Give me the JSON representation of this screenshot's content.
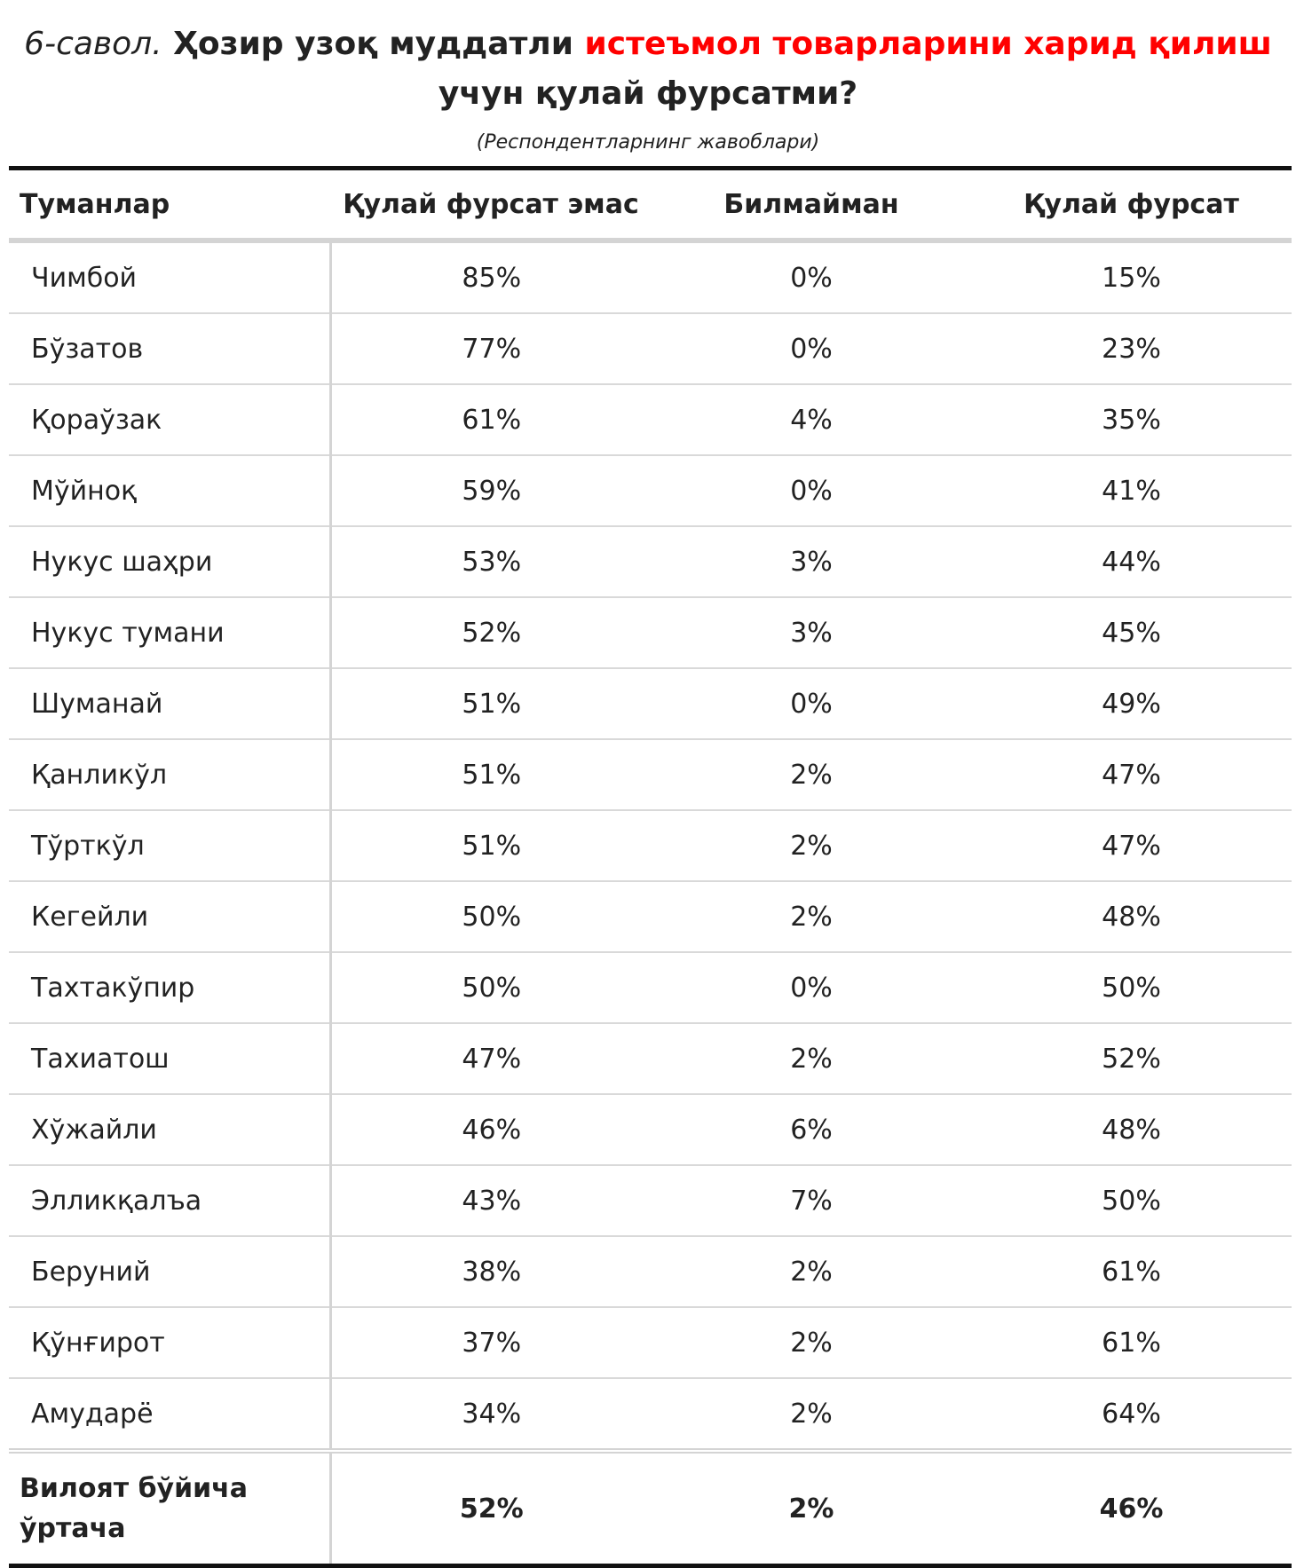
{
  "header": {
    "lead": "6-савол.",
    "part1": "Ҳозир узоқ муддатли",
    "highlight": "истеъмол товарларини харид қилиш",
    "part2": "учун қулай фурсатми?",
    "subtitle": "(Респондентларнинг жавоблари)"
  },
  "colors": {
    "highlight": "#ff0000",
    "text": "#222222",
    "rule": "#111111",
    "grid": "#d4d4d4"
  },
  "table": {
    "columns": [
      "Туманлар",
      "Қулай фурсат эмас",
      "Билмайман",
      "Қулай фурсат"
    ],
    "rows": [
      [
        "Чимбой",
        "85%",
        "0%",
        "15%"
      ],
      [
        "Бўзатов",
        "77%",
        "0%",
        "23%"
      ],
      [
        "Қораўзак",
        "61%",
        "4%",
        "35%"
      ],
      [
        "Мўйноқ",
        "59%",
        "0%",
        "41%"
      ],
      [
        "Нукус шаҳри",
        "53%",
        "3%",
        "44%"
      ],
      [
        "Нукус тумани",
        "52%",
        "3%",
        "45%"
      ],
      [
        "Шуманай",
        "51%",
        "0%",
        "49%"
      ],
      [
        "Қанликўл",
        "51%",
        "2%",
        "47%"
      ],
      [
        "Тўрткўл",
        "51%",
        "2%",
        "47%"
      ],
      [
        "Кегейли",
        "50%",
        "2%",
        "48%"
      ],
      [
        "Тахтакўпир",
        "50%",
        "0%",
        "50%"
      ],
      [
        "Тахиатош",
        "47%",
        "2%",
        "52%"
      ],
      [
        "Хўжайли",
        "46%",
        "6%",
        "48%"
      ],
      [
        "Элликқалъа",
        "43%",
        "7%",
        "50%"
      ],
      [
        "Беруний",
        "38%",
        "2%",
        "61%"
      ],
      [
        "Қўнғирот",
        "37%",
        "2%",
        "61%"
      ],
      [
        "Амударё",
        "34%",
        "2%",
        "64%"
      ]
    ],
    "footer": [
      "Вилоят бўйича ўртача",
      "52%",
      "2%",
      "46%"
    ]
  }
}
